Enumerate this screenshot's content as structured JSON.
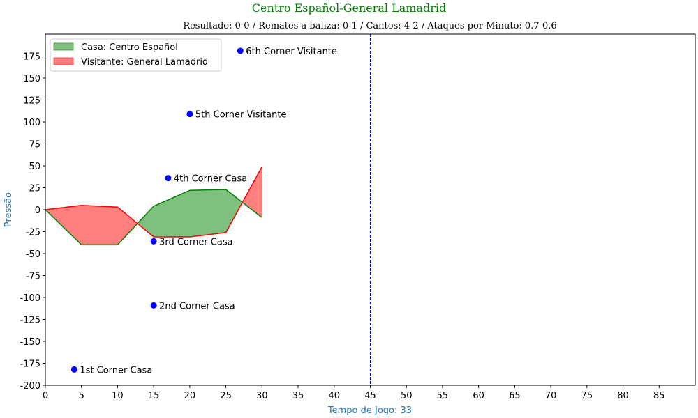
{
  "chart_data": {
    "type": "area",
    "title": "Centro Español-General Lamadrid",
    "subtitle": "Resultado: 0-0 / Remates a baliza: 0-1 / Cantos: 4-2 / Ataques por Minuto: 0.7-0.6",
    "xlabel": "Tempo de Jogo: 33",
    "ylabel": "Pressão",
    "xlim": [
      0,
      90
    ],
    "ylim": [
      -200,
      200
    ],
    "x_ticks": [
      0,
      5,
      10,
      15,
      20,
      25,
      30,
      35,
      40,
      45,
      50,
      55,
      60,
      65,
      70,
      75,
      80,
      85
    ],
    "y_ticks": [
      -200,
      -175,
      -150,
      -125,
      -100,
      -75,
      -50,
      -25,
      0,
      25,
      50,
      75,
      100,
      125,
      150,
      175
    ],
    "legend_position": "upper left",
    "series": [
      {
        "name": "Casa: Centro Español",
        "color": "#008000",
        "fill": "#7fbf7f",
        "x": [
          0,
          5,
          10,
          15,
          20,
          25,
          30
        ],
        "y": [
          0,
          -40,
          -40,
          4,
          22,
          23,
          -9
        ]
      },
      {
        "name": "Visitante: General Lamadrid",
        "color": "#ff0000",
        "fill": "#ff7f7f",
        "x": [
          0,
          5,
          10,
          15,
          20,
          25,
          30
        ],
        "y": [
          0,
          5,
          3,
          -31,
          -31,
          -26,
          49
        ]
      }
    ],
    "vertical_line": {
      "x": 45,
      "color": "#0000cc",
      "style": "dashed"
    },
    "events": [
      {
        "x": 4,
        "y": -182,
        "label": "1st Corner Casa"
      },
      {
        "x": 15,
        "y": -109,
        "label": "2nd Corner Casa"
      },
      {
        "x": 15,
        "y": -36,
        "label": "3rd Corner Casa"
      },
      {
        "x": 17,
        "y": 36,
        "label": "4th Corner Casa"
      },
      {
        "x": 20,
        "y": 109,
        "label": "5th Corner Visitante"
      },
      {
        "x": 27,
        "y": 181,
        "label": "6th Corner Visitante"
      }
    ],
    "colors": {
      "title": "#008000",
      "axis_label": "#1f77b4",
      "event_marker": "#0000ff"
    }
  }
}
